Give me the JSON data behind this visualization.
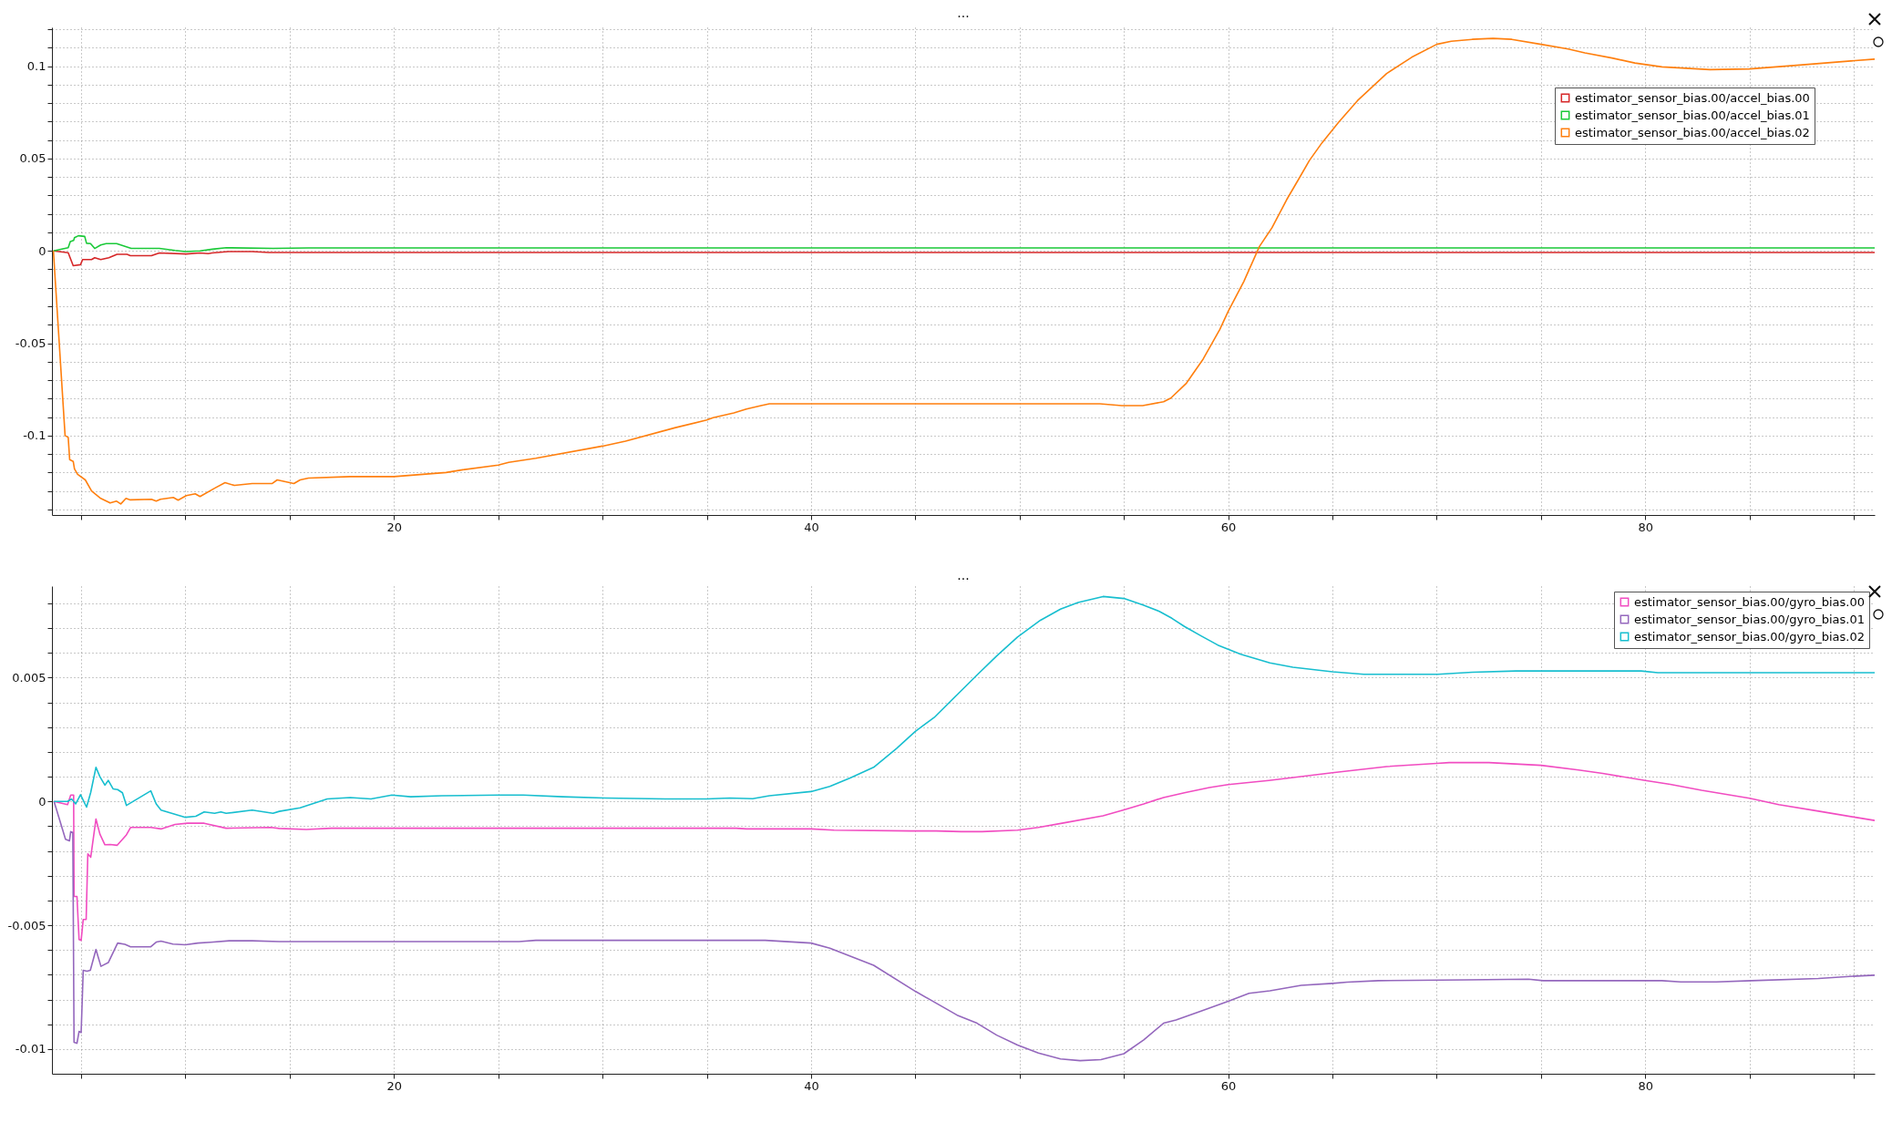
{
  "chart_data": [
    {
      "type": "line",
      "title": "...",
      "xlim": [
        3.6,
        91
      ],
      "ylim": [
        -0.143,
        0.121
      ],
      "grid": true,
      "legend": "top right",
      "marker": "none",
      "line_style": "solid",
      "xticks": [
        {
          "value": 5,
          "label": null
        },
        {
          "value": 10,
          "label": null
        },
        {
          "value": 15,
          "label": null
        },
        20,
        {
          "value": 25,
          "label": null
        },
        {
          "value": 30,
          "label": null
        },
        {
          "value": 35,
          "label": null
        },
        40,
        {
          "value": 45,
          "label": null
        },
        {
          "value": 50,
          "label": null
        },
        {
          "value": 55,
          "label": null
        },
        60,
        {
          "value": 65,
          "label": null
        },
        {
          "value": 70,
          "label": null
        },
        {
          "value": 75,
          "label": null
        },
        80,
        {
          "value": 85,
          "label": null
        },
        {
          "value": 90,
          "label": null
        }
      ],
      "yticks": [
        {
          "value": -0.14,
          "label": null
        },
        {
          "value": -0.13,
          "label": null
        },
        {
          "value": -0.12,
          "label": null
        },
        {
          "value": -0.11,
          "label": null
        },
        -0.1,
        {
          "value": -0.09,
          "label": null
        },
        {
          "value": -0.08,
          "label": null
        },
        {
          "value": -0.07,
          "label": null
        },
        {
          "value": -0.06,
          "label": null
        },
        -0.05,
        {
          "value": -0.04,
          "label": null
        },
        {
          "value": -0.03,
          "label": null
        },
        {
          "value": -0.02,
          "label": null
        },
        {
          "value": -0.01,
          "label": null
        },
        0,
        {
          "value": 0.01,
          "label": null
        },
        {
          "value": 0.02,
          "label": null
        },
        {
          "value": 0.03,
          "label": null
        },
        {
          "value": 0.04,
          "label": null
        },
        0.05,
        {
          "value": 0.06,
          "label": null
        },
        {
          "value": 0.07,
          "label": null
        },
        {
          "value": 0.08,
          "label": null
        },
        {
          "value": 0.09,
          "label": null
        },
        0.1,
        {
          "value": 0.11,
          "label": null
        },
        {
          "value": 0.12,
          "label": null
        }
      ],
      "series": [
        {
          "name": "estimator_sensor_bias.00/accel_bias.00",
          "color": "#d62728",
          "x": [
            3.67,
            4.38,
            4.48,
            4.62,
            4.97,
            5.07,
            5.5,
            5.65,
            5.94,
            6.33,
            6.72,
            7.2,
            7.36,
            8.37,
            8.75,
            10.04,
            10.7,
            11.09,
            11.28,
            12.06,
            13.2,
            14.0,
            91
          ],
          "values": [
            0,
            -0.001,
            -0.004,
            -0.008,
            -0.0075,
            -0.0047,
            -0.0047,
            -0.0037,
            -0.0047,
            -0.0037,
            -0.0019,
            -0.0019,
            -0.0026,
            -0.0026,
            -0.0011,
            -0.0017,
            -0.0011,
            -0.0015,
            -0.0011,
            -0.0004,
            -0.0004,
            -0.0009,
            -0.0009
          ]
        },
        {
          "name": "estimator_sensor_bias.00/accel_bias.01",
          "color": "#1ac938",
          "x": [
            3.67,
            4.38,
            4.48,
            4.64,
            4.68,
            4.87,
            5.17,
            5.26,
            5.45,
            5.65,
            5.94,
            6.2,
            6.7,
            7.0,
            7.4,
            8.75,
            9.5,
            10.0,
            10.7,
            11.3,
            11.96,
            14.2,
            15.9,
            91
          ],
          "values": [
            0,
            0.0017,
            0.005,
            0.0056,
            0.0071,
            0.0082,
            0.0078,
            0.0041,
            0.0039,
            0.0013,
            0.0032,
            0.0039,
            0.0039,
            0.0028,
            0.0013,
            0.0013,
            0.0002,
            -0.0004,
            0,
            0.0009,
            0.0017,
            0.0013,
            0.0016,
            0.0016
          ]
        },
        {
          "name": "estimator_sensor_bias.00/accel_bias.02",
          "color": "#ff7f0e",
          "x": [
            3.67,
            4.23,
            4.38,
            4.45,
            4.62,
            4.68,
            4.83,
            5.2,
            5.5,
            5.94,
            6.39,
            6.7,
            6.9,
            7.15,
            7.36,
            8.37,
            8.6,
            8.8,
            9.42,
            9.65,
            10.04,
            10.47,
            10.7,
            11.4,
            11.9,
            12.35,
            13.2,
            14.15,
            14.4,
            15.0,
            15.2,
            15.5,
            15.9,
            17.9,
            20,
            22.5,
            23.3,
            25,
            25.5,
            26.8,
            30,
            31.1,
            33.5,
            35,
            35.3,
            36.3,
            36.9,
            37.6,
            38.0,
            53.85,
            54.9,
            55.9,
            56.9,
            57.25,
            58.0,
            58.8,
            59.6,
            60,
            60.75,
            61.5,
            62.1,
            62.8,
            63.4,
            63.9,
            64.5,
            65.3,
            66.2,
            67.6,
            68.8,
            70,
            70.7,
            71.7,
            72.7,
            73.6,
            75,
            76.3,
            77.1,
            78.4,
            79.5,
            80.8,
            83.1,
            85,
            87.4,
            89.3,
            91
          ],
          "values": [
            0,
            -0.1,
            -0.101,
            -0.113,
            -0.114,
            -0.118,
            -0.121,
            -0.124,
            -0.13,
            -0.134,
            -0.1365,
            -0.1355,
            -0.137,
            -0.134,
            -0.1348,
            -0.1345,
            -0.1355,
            -0.1345,
            -0.1335,
            -0.135,
            -0.1325,
            -0.1315,
            -0.133,
            -0.1285,
            -0.1255,
            -0.127,
            -0.126,
            -0.126,
            -0.124,
            -0.1255,
            -0.126,
            -0.124,
            -0.123,
            -0.1222,
            -0.1222,
            -0.12,
            -0.1185,
            -0.116,
            -0.1145,
            -0.1123,
            -0.1057,
            -0.103,
            -0.0957,
            -0.0916,
            -0.0903,
            -0.0877,
            -0.0856,
            -0.0838,
            -0.0828,
            -0.0828,
            -0.0838,
            -0.0838,
            -0.0817,
            -0.0797,
            -0.0716,
            -0.0586,
            -0.0425,
            -0.0328,
            -0.0166,
            0.0024,
            0.0125,
            0.0276,
            0.0392,
            0.049,
            0.0585,
            0.0697,
            0.0813,
            0.096,
            0.1048,
            0.1118,
            0.1135,
            0.1145,
            0.115,
            0.1145,
            0.1118,
            0.1093,
            0.1072,
            0.1044,
            0.1017,
            0.0996,
            0.0981,
            0.0985,
            0.1006,
            0.1023,
            0.1038
          ]
        }
      ]
    },
    {
      "type": "line",
      "title": "...",
      "xlim": [
        3.6,
        91
      ],
      "ylim": [
        -0.011,
        0.0087
      ],
      "grid": true,
      "legend": "top right",
      "marker": "none",
      "line_style": "solid",
      "xticks": [
        {
          "value": 5,
          "label": null
        },
        {
          "value": 10,
          "label": null
        },
        {
          "value": 15,
          "label": null
        },
        20,
        {
          "value": 25,
          "label": null
        },
        {
          "value": 30,
          "label": null
        },
        {
          "value": 35,
          "label": null
        },
        40,
        {
          "value": 45,
          "label": null
        },
        {
          "value": 50,
          "label": null
        },
        {
          "value": 55,
          "label": null
        },
        60,
        {
          "value": 65,
          "label": null
        },
        {
          "value": 70,
          "label": null
        },
        {
          "value": 75,
          "label": null
        },
        80,
        {
          "value": 85,
          "label": null
        },
        {
          "value": 90,
          "label": null
        }
      ],
      "yticks": [
        -0.01,
        {
          "value": -0.009,
          "label": null
        },
        {
          "value": -0.008,
          "label": null
        },
        {
          "value": -0.007,
          "label": null
        },
        {
          "value": -0.006,
          "label": null
        },
        -0.005,
        {
          "value": -0.004,
          "label": null
        },
        {
          "value": -0.003,
          "label": null
        },
        {
          "value": -0.002,
          "label": null
        },
        {
          "value": -0.001,
          "label": null
        },
        0,
        {
          "value": 0.001,
          "label": null
        },
        {
          "value": 0.002,
          "label": null
        },
        {
          "value": 0.003,
          "label": null
        },
        {
          "value": 0.004,
          "label": null
        },
        0.005,
        {
          "value": 0.006,
          "label": null
        },
        {
          "value": 0.007,
          "label": null
        },
        {
          "value": 0.008,
          "label": null
        }
      ],
      "series": [
        {
          "name": "estimator_sensor_bias.00/gyro_bias.00",
          "color": "#f14cc1",
          "x": [
            3.7,
            4.35,
            4.5,
            4.64,
            4.66,
            4.8,
            4.9,
            5.0,
            5.1,
            5.24,
            5.32,
            5.46,
            5.71,
            5.9,
            6.14,
            6.4,
            6.73,
            7.17,
            7.37,
            8.34,
            8.83,
            9.5,
            10.1,
            10.9,
            11.95,
            14.1,
            14.5,
            15.8,
            17.0,
            36.4,
            36.9,
            40,
            41.1,
            44.8,
            46.0,
            47.2,
            48.2,
            49.9,
            50.9,
            52.1,
            54.0,
            55.0,
            55.95,
            56.9,
            57.9,
            59.1,
            60,
            61.95,
            65,
            67.6,
            70,
            70.6,
            72.5,
            75,
            76.8,
            77.96,
            80,
            81.2,
            82.7,
            85,
            86.4,
            88.3,
            90,
            91
          ],
          "values": [
            0,
            -0.00013,
            0.00026,
            0.00026,
            -0.00384,
            -0.00384,
            -0.00558,
            -0.00561,
            -0.00477,
            -0.00477,
            -0.00212,
            -0.00225,
            -0.00071,
            -0.00132,
            -0.00175,
            -0.00174,
            -0.00177,
            -0.00135,
            -0.00105,
            -0.00105,
            -0.00111,
            -0.00093,
            -0.00088,
            -0.00088,
            -0.00108,
            -0.00105,
            -0.00109,
            -0.00113,
            -0.00108,
            -0.00108,
            -0.00111,
            -0.00111,
            -0.00116,
            -0.00119,
            -0.00119,
            -0.00122,
            -0.00122,
            -0.00116,
            -0.00105,
            -0.00087,
            -0.00058,
            -0.00034,
            -0.0001,
            0.00016,
            0.00035,
            0.00056,
            0.00068,
            0.00085,
            0.00116,
            0.00141,
            0.00154,
            0.00157,
            0.00157,
            0.00146,
            0.00127,
            0.00113,
            0.00085,
            0.00069,
            0.00045,
            0.00013,
            -0.00013,
            -0.00039,
            -0.00063,
            -0.00077
          ]
        },
        {
          "name": "estimator_sensor_bias.00/gyro_bias.01",
          "color": "#9467bd",
          "x": [
            3.7,
            4.25,
            4.44,
            4.5,
            4.6,
            4.66,
            4.8,
            4.9,
            5.0,
            5.1,
            5.28,
            5.44,
            5.71,
            5.95,
            6.3,
            6.75,
            7.1,
            7.37,
            8.34,
            8.6,
            8.83,
            9.4,
            10.0,
            10.6,
            11.2,
            12.1,
            13.2,
            14.5,
            26.0,
            26.8,
            37.8,
            40,
            40.9,
            43.0,
            45.0,
            47.0,
            47.96,
            48.9,
            49.9,
            50.9,
            51.96,
            52.9,
            53.9,
            55.0,
            55.95,
            56.9,
            57.5,
            58.7,
            60,
            61.0,
            62.0,
            63.5,
            65,
            65.7,
            67.2,
            71.4,
            74.4,
            75.1,
            80.8,
            81.7,
            83.4,
            85.1,
            88.3,
            89.8,
            91
          ],
          "values": [
            0,
            -0.00153,
            -0.00159,
            -0.00122,
            -0.00125,
            -0.00973,
            -0.00977,
            -0.00929,
            -0.00934,
            -0.00682,
            -0.00686,
            -0.00682,
            -0.00598,
            -0.00666,
            -0.00651,
            -0.00572,
            -0.00577,
            -0.00587,
            -0.00587,
            -0.00568,
            -0.00564,
            -0.00576,
            -0.00579,
            -0.00572,
            -0.00569,
            -0.00563,
            -0.00563,
            -0.00566,
            -0.00566,
            -0.00561,
            -0.00561,
            -0.00572,
            -0.00593,
            -0.00662,
            -0.00767,
            -0.00863,
            -0.00896,
            -0.00944,
            -0.00984,
            -0.01016,
            -0.0104,
            -0.01047,
            -0.01043,
            -0.01019,
            -0.00963,
            -0.00896,
            -0.00883,
            -0.00847,
            -0.00807,
            -0.00775,
            -0.00765,
            -0.00743,
            -0.00735,
            -0.0073,
            -0.00724,
            -0.00721,
            -0.00718,
            -0.00724,
            -0.00724,
            -0.00729,
            -0.00729,
            -0.00724,
            -0.00715,
            -0.00707,
            -0.00702
          ]
        },
        {
          "name": "estimator_sensor_bias.00/gyro_bias.02",
          "color": "#17becf",
          "x": [
            3.7,
            4.35,
            4.54,
            4.74,
            4.97,
            5.26,
            5.46,
            5.71,
            5.9,
            6.14,
            6.3,
            6.53,
            6.75,
            6.98,
            7.17,
            8.34,
            8.6,
            8.83,
            10.0,
            10.5,
            10.9,
            11.4,
            11.7,
            11.95,
            13.2,
            14.2,
            14.5,
            15.5,
            16.8,
            17.9,
            18.9,
            19.9,
            20.8,
            22.3,
            25,
            26.2,
            28.1,
            30.1,
            33.0,
            35,
            36.1,
            37.2,
            38.0,
            40,
            40.9,
            41.9,
            43.0,
            44.1,
            45.0,
            45.9,
            47.0,
            47.96,
            48.9,
            49.9,
            51.0,
            51.96,
            52.8,
            54.0,
            55.0,
            55.95,
            56.7,
            57.3,
            57.9,
            58.7,
            59.5,
            60.6,
            62.0,
            63.1,
            65,
            66.5,
            70.06,
            71.7,
            73.8,
            79.8,
            80.6,
            91
          ],
          "values": [
            0,
            0,
            0.0001,
            -0.0001,
            0.00027,
            -0.00023,
            0.00037,
            0.00138,
            0.001,
            0.00066,
            0.00085,
            0.00051,
            0.00048,
            0.00035,
            -0.00016,
            0.00043,
            -0.0001,
            -0.00035,
            -0.00064,
            -0.0006,
            -0.00042,
            -0.00048,
            -0.00042,
            -0.00048,
            -0.00035,
            -0.00048,
            -0.0004,
            -0.00026,
            0.0001,
            0.00016,
            0.0001,
            0.00026,
            0.00019,
            0.00023,
            0.00026,
            0.00026,
            0.00019,
            0.00014,
            0.0001,
            0.0001,
            0.00014,
            0.00011,
            0.00023,
            0.0004,
            0.00061,
            0.00096,
            0.00138,
            0.00214,
            0.00283,
            0.00339,
            0.00431,
            0.00511,
            0.00588,
            0.00664,
            0.00732,
            0.00777,
            0.00804,
            0.00828,
            0.0082,
            0.00793,
            0.00768,
            0.0074,
            0.00707,
            0.00669,
            0.00632,
            0.00595,
            0.0056,
            0.00542,
            0.00524,
            0.00514,
            0.00514,
            0.00522,
            0.00527,
            0.00527,
            0.0052,
            0.0052
          ]
        }
      ]
    }
  ]
}
